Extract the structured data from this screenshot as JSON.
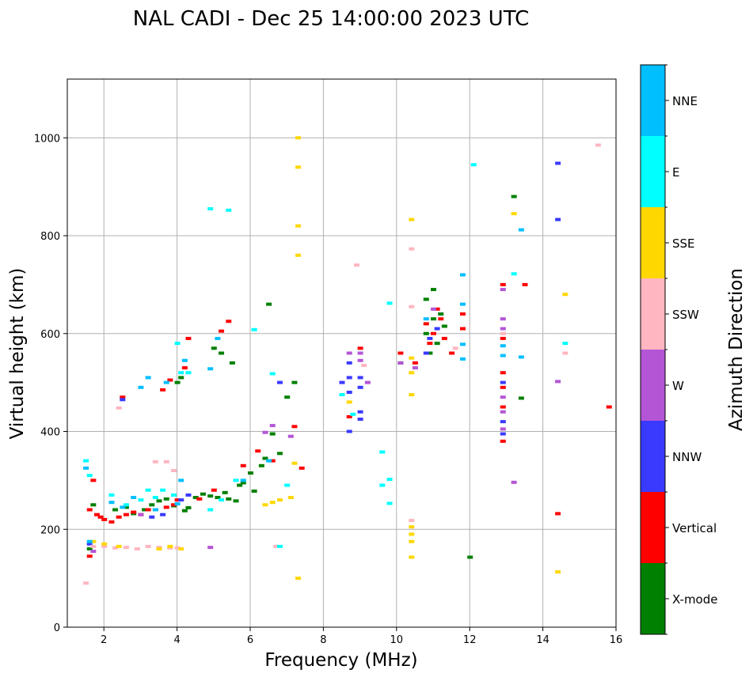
{
  "chart_data": {
    "type": "scatter",
    "title": "NAL CADI - Dec 25 14:00:00 2023 UTC",
    "xlabel": "Frequency (MHz)",
    "ylabel": "Virtual height (km)",
    "xlim": [
      1,
      16
    ],
    "ylim": [
      0,
      1120
    ],
    "xticks": [
      2,
      4,
      6,
      8,
      10,
      12,
      14,
      16
    ],
    "yticks": [
      0,
      200,
      400,
      600,
      800,
      1000
    ],
    "grid": true,
    "colorbar": {
      "label": "Azimuth Direction",
      "categories": [
        {
          "name": "X-mode",
          "color": "#008000"
        },
        {
          "name": "Vertical",
          "color": "#ff0000"
        },
        {
          "name": "NNW",
          "color": "#3a3aff"
        },
        {
          "name": "W",
          "color": "#b455d6"
        },
        {
          "name": "SSW",
          "color": "#ffb6c1"
        },
        {
          "name": "SSE",
          "color": "#ffd700"
        },
        {
          "name": "E",
          "color": "#00ffff"
        },
        {
          "name": "NNE",
          "color": "#00bfff"
        }
      ]
    },
    "series": [
      {
        "name": "X-mode",
        "points": [
          [
            1.6,
            160
          ],
          [
            1.7,
            250
          ],
          [
            2.3,
            240
          ],
          [
            2.6,
            245
          ],
          [
            2.8,
            232
          ],
          [
            3.1,
            240
          ],
          [
            3.3,
            250
          ],
          [
            3.5,
            258
          ],
          [
            3.7,
            262
          ],
          [
            3.9,
            248
          ],
          [
            4.0,
            500
          ],
          [
            4.1,
            510
          ],
          [
            4.2,
            238
          ],
          [
            4.3,
            244
          ],
          [
            4.5,
            265
          ],
          [
            4.7,
            272
          ],
          [
            4.9,
            268
          ],
          [
            5.0,
            570
          ],
          [
            5.1,
            265
          ],
          [
            5.2,
            560
          ],
          [
            5.3,
            275
          ],
          [
            5.4,
            262
          ],
          [
            5.5,
            540
          ],
          [
            5.6,
            258
          ],
          [
            5.7,
            290
          ],
          [
            5.8,
            295
          ],
          [
            6.0,
            315
          ],
          [
            6.1,
            278
          ],
          [
            6.3,
            330
          ],
          [
            6.4,
            345
          ],
          [
            6.5,
            660
          ],
          [
            6.6,
            395
          ],
          [
            6.8,
            355
          ],
          [
            7.0,
            470
          ],
          [
            7.2,
            500
          ],
          [
            10.1,
            540
          ],
          [
            10.8,
            600
          ],
          [
            10.8,
            670
          ],
          [
            10.9,
            560
          ],
          [
            11.0,
            630
          ],
          [
            11.0,
            690
          ],
          [
            11.1,
            580
          ],
          [
            11.2,
            640
          ],
          [
            11.3,
            615
          ],
          [
            12.0,
            143
          ],
          [
            13.2,
            880
          ],
          [
            13.4,
            468
          ]
        ]
      },
      {
        "name": "Vertical",
        "points": [
          [
            1.6,
            145
          ],
          [
            1.6,
            240
          ],
          [
            1.7,
            300
          ],
          [
            1.8,
            230
          ],
          [
            1.9,
            225
          ],
          [
            2.0,
            220
          ],
          [
            2.2,
            215
          ],
          [
            2.4,
            225
          ],
          [
            2.5,
            470
          ],
          [
            2.6,
            230
          ],
          [
            2.8,
            235
          ],
          [
            3.0,
            230
          ],
          [
            3.2,
            240
          ],
          [
            3.4,
            240
          ],
          [
            3.6,
            485
          ],
          [
            3.7,
            245
          ],
          [
            3.8,
            505
          ],
          [
            3.9,
            250
          ],
          [
            4.0,
            260
          ],
          [
            4.2,
            530
          ],
          [
            4.3,
            590
          ],
          [
            4.6,
            262
          ],
          [
            5.0,
            280
          ],
          [
            5.2,
            605
          ],
          [
            5.4,
            625
          ],
          [
            5.8,
            330
          ],
          [
            6.2,
            360
          ],
          [
            6.6,
            340
          ],
          [
            7.2,
            410
          ],
          [
            7.4,
            325
          ],
          [
            8.7,
            430
          ],
          [
            9.0,
            570
          ],
          [
            10.1,
            560
          ],
          [
            10.5,
            540
          ],
          [
            10.8,
            620
          ],
          [
            10.9,
            580
          ],
          [
            11.0,
            600
          ],
          [
            11.1,
            650
          ],
          [
            11.2,
            630
          ],
          [
            11.3,
            590
          ],
          [
            11.5,
            560
          ],
          [
            11.8,
            610
          ],
          [
            11.8,
            640
          ],
          [
            12.9,
            700
          ],
          [
            12.9,
            590
          ],
          [
            12.9,
            520
          ],
          [
            12.9,
            490
          ],
          [
            12.9,
            450
          ],
          [
            12.9,
            380
          ],
          [
            13.5,
            700
          ],
          [
            14.4,
            232
          ],
          [
            15.8,
            450
          ]
        ]
      },
      {
        "name": "NNW",
        "points": [
          [
            1.6,
            170
          ],
          [
            2.5,
            465
          ],
          [
            3.3,
            225
          ],
          [
            3.6,
            230
          ],
          [
            4.1,
            260
          ],
          [
            4.3,
            270
          ],
          [
            6.8,
            500
          ],
          [
            8.5,
            500
          ],
          [
            8.7,
            540
          ],
          [
            8.7,
            510
          ],
          [
            8.7,
            480
          ],
          [
            8.7,
            400
          ],
          [
            9.0,
            510
          ],
          [
            9.0,
            490
          ],
          [
            9.0,
            425
          ],
          [
            9.0,
            440
          ],
          [
            10.8,
            560
          ],
          [
            10.9,
            590
          ],
          [
            11.1,
            610
          ],
          [
            12.9,
            500
          ],
          [
            12.9,
            420
          ],
          [
            12.9,
            395
          ],
          [
            14.4,
            948
          ],
          [
            14.4,
            833
          ]
        ]
      },
      {
        "name": "W",
        "points": [
          [
            1.7,
            155
          ],
          [
            3.0,
            230
          ],
          [
            4.9,
            163
          ],
          [
            6.4,
            398
          ],
          [
            6.6,
            412
          ],
          [
            7.1,
            390
          ],
          [
            8.7,
            560
          ],
          [
            9.0,
            560
          ],
          [
            9.0,
            545
          ],
          [
            9.2,
            500
          ],
          [
            10.1,
            540
          ],
          [
            10.5,
            530
          ],
          [
            11.0,
            650
          ],
          [
            12.9,
            690
          ],
          [
            12.9,
            630
          ],
          [
            12.9,
            610
          ],
          [
            12.9,
            470
          ],
          [
            12.9,
            440
          ],
          [
            12.9,
            405
          ],
          [
            13.2,
            296
          ],
          [
            14.4,
            502
          ]
        ]
      },
      {
        "name": "SSW",
        "points": [
          [
            1.5,
            90
          ],
          [
            1.7,
            165
          ],
          [
            2.0,
            165
          ],
          [
            2.3,
            162
          ],
          [
            2.6,
            163
          ],
          [
            2.9,
            160
          ],
          [
            3.2,
            165
          ],
          [
            3.4,
            338
          ],
          [
            3.5,
            163
          ],
          [
            3.7,
            338
          ],
          [
            3.8,
            162
          ],
          [
            4.0,
            162
          ],
          [
            3.9,
            320
          ],
          [
            2.4,
            448
          ],
          [
            6.7,
            165
          ],
          [
            9.1,
            535
          ],
          [
            8.9,
            740
          ],
          [
            10.4,
            655
          ],
          [
            10.4,
            773
          ],
          [
            10.4,
            218
          ],
          [
            11.6,
            570
          ],
          [
            12.9,
            600
          ],
          [
            14.6,
            560
          ],
          [
            15.5,
            985
          ]
        ]
      },
      {
        "name": "SSE",
        "points": [
          [
            1.7,
            175
          ],
          [
            2.0,
            170
          ],
          [
            2.4,
            165
          ],
          [
            3.5,
            160
          ],
          [
            3.8,
            165
          ],
          [
            4.1,
            160
          ],
          [
            6.4,
            250
          ],
          [
            6.6,
            255
          ],
          [
            6.8,
            260
          ],
          [
            7.1,
            265
          ],
          [
            7.3,
            100
          ],
          [
            7.3,
            760
          ],
          [
            7.3,
            820
          ],
          [
            7.3,
            940
          ],
          [
            7.3,
            1000
          ],
          [
            7.2,
            335
          ],
          [
            8.7,
            460
          ],
          [
            10.4,
            143
          ],
          [
            10.4,
            175
          ],
          [
            10.4,
            190
          ],
          [
            10.4,
            205
          ],
          [
            10.4,
            475
          ],
          [
            10.4,
            520
          ],
          [
            10.4,
            550
          ],
          [
            10.4,
            833
          ],
          [
            13.2,
            845
          ],
          [
            14.4,
            113
          ],
          [
            14.6,
            680
          ]
        ]
      },
      {
        "name": "E",
        "points": [
          [
            1.5,
            340
          ],
          [
            1.6,
            310
          ],
          [
            2.2,
            270
          ],
          [
            2.6,
            250
          ],
          [
            3.0,
            260
          ],
          [
            3.2,
            280
          ],
          [
            3.4,
            265
          ],
          [
            3.6,
            280
          ],
          [
            3.9,
            270
          ],
          [
            4.0,
            580
          ],
          [
            4.1,
            520
          ],
          [
            4.3,
            520
          ],
          [
            4.9,
            240
          ],
          [
            5.2,
            260
          ],
          [
            5.6,
            300
          ],
          [
            4.9,
            855
          ],
          [
            5.4,
            852
          ],
          [
            6.1,
            608
          ],
          [
            6.6,
            518
          ],
          [
            6.8,
            165
          ],
          [
            7.0,
            290
          ],
          [
            8.5,
            475
          ],
          [
            8.8,
            435
          ],
          [
            9.6,
            358
          ],
          [
            9.6,
            290
          ],
          [
            9.8,
            253
          ],
          [
            9.8,
            302
          ],
          [
            9.8,
            662
          ],
          [
            12.1,
            945
          ],
          [
            13.2,
            722
          ],
          [
            14.6,
            580
          ]
        ]
      },
      {
        "name": "NNE",
        "points": [
          [
            1.5,
            325
          ],
          [
            1.6,
            175
          ],
          [
            2.2,
            255
          ],
          [
            2.5,
            245
          ],
          [
            2.8,
            265
          ],
          [
            3.0,
            490
          ],
          [
            3.2,
            510
          ],
          [
            3.4,
            240
          ],
          [
            3.7,
            500
          ],
          [
            4.0,
            252
          ],
          [
            4.1,
            300
          ],
          [
            4.2,
            545
          ],
          [
            4.9,
            528
          ],
          [
            5.1,
            590
          ],
          [
            5.8,
            300
          ],
          [
            6.5,
            340
          ],
          [
            10.8,
            630
          ],
          [
            11.8,
            720
          ],
          [
            11.8,
            660
          ],
          [
            11.8,
            578
          ],
          [
            11.8,
            548
          ],
          [
            12.9,
            575
          ],
          [
            12.9,
            555
          ],
          [
            13.4,
            812
          ],
          [
            13.4,
            552
          ]
        ]
      }
    ]
  }
}
